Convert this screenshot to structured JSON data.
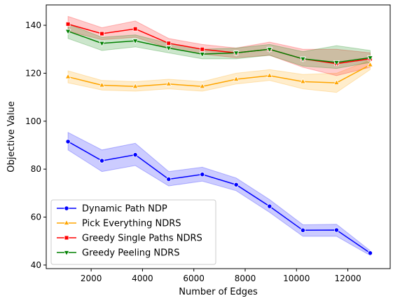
{
  "chart_data": {
    "type": "line",
    "xlabel": "Number of Edges",
    "ylabel": "Objective Value",
    "xlim": [
      250,
      13650
    ],
    "ylim": [
      38.5,
      148.5
    ],
    "xticks": [
      2000,
      4000,
      6000,
      8000,
      10000,
      12000
    ],
    "yticks": [
      40,
      60,
      80,
      100,
      120,
      140
    ],
    "grid": false,
    "legend_position": "lower-left",
    "x": [
      1100,
      2420,
      3720,
      5020,
      6330,
      7650,
      8950,
      10250,
      11560,
      12870
    ],
    "series": [
      {
        "name": "Dynamic Path NDP",
        "color": "#0000ff",
        "marker": "circle",
        "values": [
          91.5,
          83.5,
          86.0,
          75.8,
          77.8,
          73.5,
          64.5,
          54.5,
          54.6,
          45.0
        ],
        "lower": [
          88,
          79,
          81.5,
          73,
          75,
          71,
          62,
          52,
          52,
          44
        ],
        "upper": [
          95.3,
          88,
          90.8,
          79,
          80.8,
          76.3,
          67.3,
          56.8,
          57,
          46
        ]
      },
      {
        "name": "Pick Everything NDRS",
        "color": "#ffa500",
        "marker": "triangle-up",
        "values": [
          118.5,
          115.0,
          114.5,
          115.5,
          114.5,
          117.5,
          119.0,
          116.5,
          116.0,
          123.5
        ],
        "lower": [
          116,
          113,
          112.5,
          113.5,
          112.5,
          115.5,
          117,
          113.5,
          112,
          121.5
        ],
        "upper": [
          121,
          117,
          116.5,
          117.5,
          116.5,
          120,
          121.5,
          119.5,
          120,
          125.5
        ]
      },
      {
        "name": "Greedy Single Paths NDRS",
        "color": "#ff0000",
        "marker": "square",
        "values": [
          140.5,
          136.5,
          138.5,
          132.5,
          130.0,
          128.5,
          130.0,
          126.0,
          124.0,
          126.0
        ],
        "lower": [
          137.5,
          134,
          135,
          130.5,
          128,
          126.5,
          127.5,
          122.5,
          119,
          122.5
        ],
        "upper": [
          143.7,
          139,
          141.8,
          134.5,
          132,
          130.5,
          133,
          130,
          130,
          128.5
        ]
      },
      {
        "name": "Greedy Peeling NDRS",
        "color": "#008000",
        "marker": "triangle-down",
        "values": [
          137.5,
          132.5,
          133.5,
          130.5,
          128.0,
          128.5,
          130.0,
          126.0,
          124.5,
          126.5
        ],
        "lower": [
          134.5,
          129.5,
          131,
          128.5,
          126,
          126,
          127.5,
          123,
          122,
          124.5
        ],
        "upper": [
          140.5,
          135,
          136,
          132.5,
          130,
          130.5,
          132,
          129,
          131.5,
          129.5
        ]
      }
    ]
  }
}
